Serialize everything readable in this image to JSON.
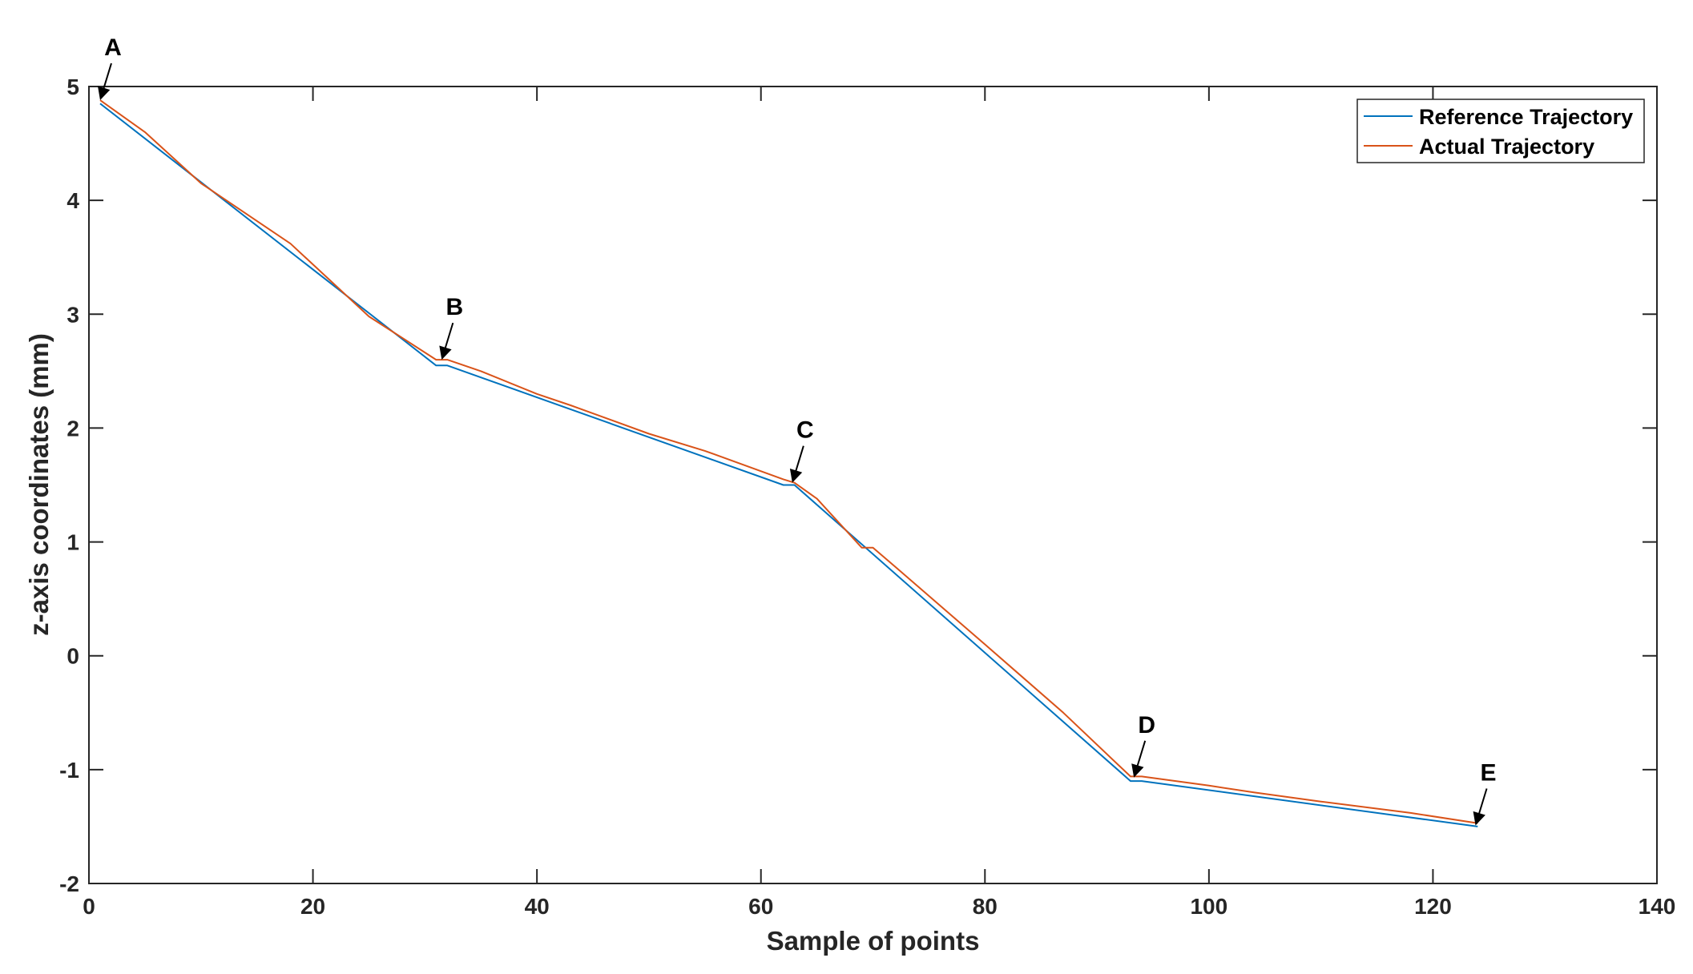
{
  "chart_data": {
    "type": "line",
    "title": "",
    "xlabel": "Sample of points",
    "ylabel": "z-axis coordinates (mm)",
    "xlim": [
      0,
      140
    ],
    "ylim": [
      -2,
      5
    ],
    "xticks": [
      0,
      20,
      40,
      60,
      80,
      100,
      120,
      140
    ],
    "yticks": [
      -2,
      -1,
      0,
      1,
      2,
      3,
      4,
      5
    ],
    "grid": false,
    "legend_position": "top-right",
    "series": [
      {
        "name": "Reference Trajectory",
        "color": "#0072BD",
        "x": [
          1,
          31,
          32,
          62,
          63,
          93,
          94,
          124
        ],
        "y": [
          4.85,
          2.55,
          2.55,
          1.5,
          1.5,
          -1.1,
          -1.1,
          -1.5
        ]
      },
      {
        "name": "Actual Trajectory",
        "color": "#D95319",
        "x": [
          1,
          5,
          10,
          18,
          25,
          31,
          32,
          35,
          40,
          43,
          50,
          55,
          62,
          63,
          65,
          69,
          70,
          72,
          80,
          87,
          93,
          94,
          100,
          104,
          110,
          118,
          124
        ],
        "y": [
          4.88,
          4.6,
          4.15,
          3.62,
          2.98,
          2.6,
          2.6,
          2.5,
          2.3,
          2.2,
          1.95,
          1.8,
          1.55,
          1.52,
          1.38,
          0.95,
          0.95,
          0.78,
          0.1,
          -0.5,
          -1.06,
          -1.06,
          -1.14,
          -1.2,
          -1.28,
          -1.38,
          -1.47
        ]
      }
    ],
    "annotations": [
      {
        "label": "A",
        "x": 1,
        "y": 4.88
      },
      {
        "label": "B",
        "x": 31.5,
        "y": 2.6
      },
      {
        "label": "C",
        "x": 62.8,
        "y": 1.52
      },
      {
        "label": "D",
        "x": 93.3,
        "y": -1.07
      },
      {
        "label": "E",
        "x": 123.8,
        "y": -1.49
      }
    ]
  }
}
